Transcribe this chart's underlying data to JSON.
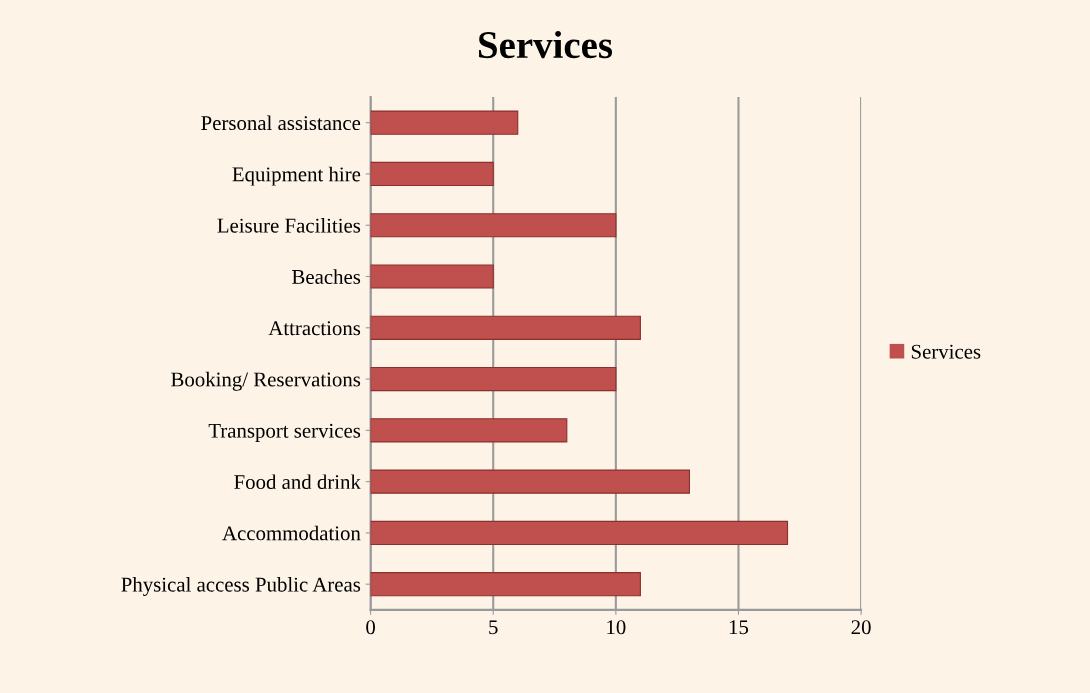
{
  "chart_data": {
    "type": "bar",
    "orientation": "horizontal",
    "title": "Services",
    "categories": [
      "Personal assistance",
      "Equipment hire",
      "Leisure Facilities",
      "Beaches",
      "Attractions",
      "Booking/ Reservations",
      "Transport services",
      "Food and drink",
      "Accommodation",
      "Physical access Public Areas"
    ],
    "series": [
      {
        "name": "Services",
        "color": "#c0504d",
        "values": [
          6,
          5,
          10,
          5,
          11,
          10,
          8,
          13,
          17,
          11
        ]
      }
    ],
    "xlim": [
      0,
      20
    ],
    "xticks": [
      0,
      5,
      10,
      15,
      20
    ],
    "grid": "x",
    "legend": "right"
  }
}
